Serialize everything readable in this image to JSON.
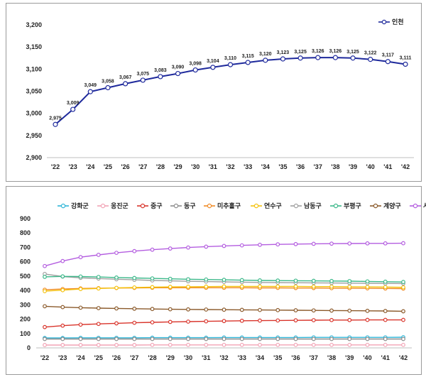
{
  "chart_data": [
    {
      "type": "line",
      "title": "",
      "xlabel": "",
      "ylabel": "",
      "categories": [
        "'22",
        "'23",
        "'24",
        "'25",
        "'26",
        "'27",
        "'28",
        "'29",
        "'30",
        "'31",
        "'32",
        "'33",
        "'34",
        "'35",
        "'36",
        "'37",
        "'38",
        "'39",
        "'40",
        "'41",
        "'42"
      ],
      "ylim": [
        2900,
        3200
      ],
      "yticks": [
        "2,900",
        "2,950",
        "3,000",
        "3,050",
        "3,100",
        "3,150",
        "3,200"
      ],
      "series": [
        {
          "name": "인천",
          "color": "#1f2a9c",
          "values": [
            2975,
            3009,
            3049,
            3058,
            3067,
            3075,
            3083,
            3090,
            3098,
            3104,
            3110,
            3115,
            3120,
            3123,
            3125,
            3126,
            3126,
            3125,
            3122,
            3117,
            3111
          ],
          "labels": [
            "2,975",
            "3,009",
            "3,049",
            "3,058",
            "3,067",
            "3,075",
            "3,083",
            "3,090",
            "3,098",
            "3,104",
            "3,110",
            "3,115",
            "3,120",
            "3,123",
            "3,125",
            "3,126",
            "3,126",
            "3,125",
            "3,122",
            "3,117",
            "3,111"
          ]
        }
      ],
      "legend": "top-right"
    },
    {
      "type": "line",
      "title": "",
      "xlabel": "",
      "ylabel": "",
      "categories": [
        "'22",
        "'23",
        "'24",
        "'25",
        "'26",
        "'27",
        "'28",
        "'29",
        "'30",
        "'31",
        "'32",
        "'33",
        "'34",
        "'35",
        "'36",
        "'37",
        "'38",
        "'39",
        "'40",
        "'41",
        "'42"
      ],
      "ylim": [
        0,
        900
      ],
      "yticks": [
        "0",
        "100",
        "200",
        "300",
        "400",
        "500",
        "600",
        "700",
        "800",
        "900"
      ],
      "legend": "top",
      "series": [
        {
          "name": "강화군",
          "color": "#2fb6d8",
          "values": [
            69,
            69,
            70,
            70,
            70,
            70,
            71,
            71,
            71,
            71,
            72,
            72,
            72,
            72,
            72,
            73,
            73,
            73,
            73,
            73,
            74
          ]
        },
        {
          "name": "옹진군",
          "color": "#f2a3b5",
          "values": [
            20,
            20,
            20,
            20,
            20,
            20,
            21,
            21,
            21,
            21,
            21,
            21,
            21,
            21,
            21,
            21,
            21,
            21,
            21,
            21,
            21
          ]
        },
        {
          "name": "중구",
          "color": "#d9342b",
          "values": [
            145,
            155,
            162,
            167,
            171,
            175,
            178,
            181,
            183,
            185,
            187,
            189,
            190,
            191,
            192,
            193,
            194,
            194,
            195,
            195,
            195
          ]
        },
        {
          "name": "동구",
          "color": "#8c8c8c",
          "values": [
            62,
            62,
            62,
            62,
            62,
            62,
            62,
            62,
            62,
            62,
            62,
            62,
            62,
            62,
            62,
            62,
            62,
            62,
            62,
            62,
            62
          ]
        },
        {
          "name": "미추홀구",
          "color": "#f08a24",
          "values": [
            405,
            410,
            414,
            416,
            417,
            418,
            419,
            419,
            419,
            419,
            419,
            419,
            418,
            418,
            417,
            417,
            416,
            416,
            415,
            414,
            413
          ]
        },
        {
          "name": "연수구",
          "color": "#f4c20d",
          "values": [
            395,
            402,
            410,
            414,
            418,
            421,
            423,
            425,
            426,
            427,
            428,
            428,
            428,
            428,
            428,
            427,
            427,
            426,
            425,
            424,
            422
          ]
        },
        {
          "name": "남동구",
          "color": "#a0a0a0",
          "values": [
            515,
            497,
            488,
            483,
            478,
            474,
            470,
            467,
            464,
            462,
            460,
            458,
            456,
            455,
            454,
            453,
            452,
            451,
            450,
            449,
            448
          ]
        },
        {
          "name": "부평구",
          "color": "#3cb88a",
          "values": [
            495,
            498,
            497,
            494,
            490,
            487,
            484,
            481,
            478,
            476,
            474,
            472,
            470,
            469,
            468,
            467,
            466,
            465,
            463,
            461,
            459
          ]
        },
        {
          "name": "계양구",
          "color": "#8b5a2b",
          "values": [
            290,
            284,
            280,
            277,
            275,
            273,
            271,
            269,
            268,
            267,
            266,
            265,
            264,
            263,
            262,
            261,
            260,
            259,
            258,
            257,
            255
          ]
        },
        {
          "name": "서구",
          "color": "#b45ee0",
          "values": [
            570,
            605,
            632,
            648,
            662,
            674,
            684,
            692,
            699,
            705,
            710,
            714,
            718,
            721,
            723,
            725,
            726,
            727,
            728,
            728,
            729
          ]
        }
      ]
    }
  ]
}
